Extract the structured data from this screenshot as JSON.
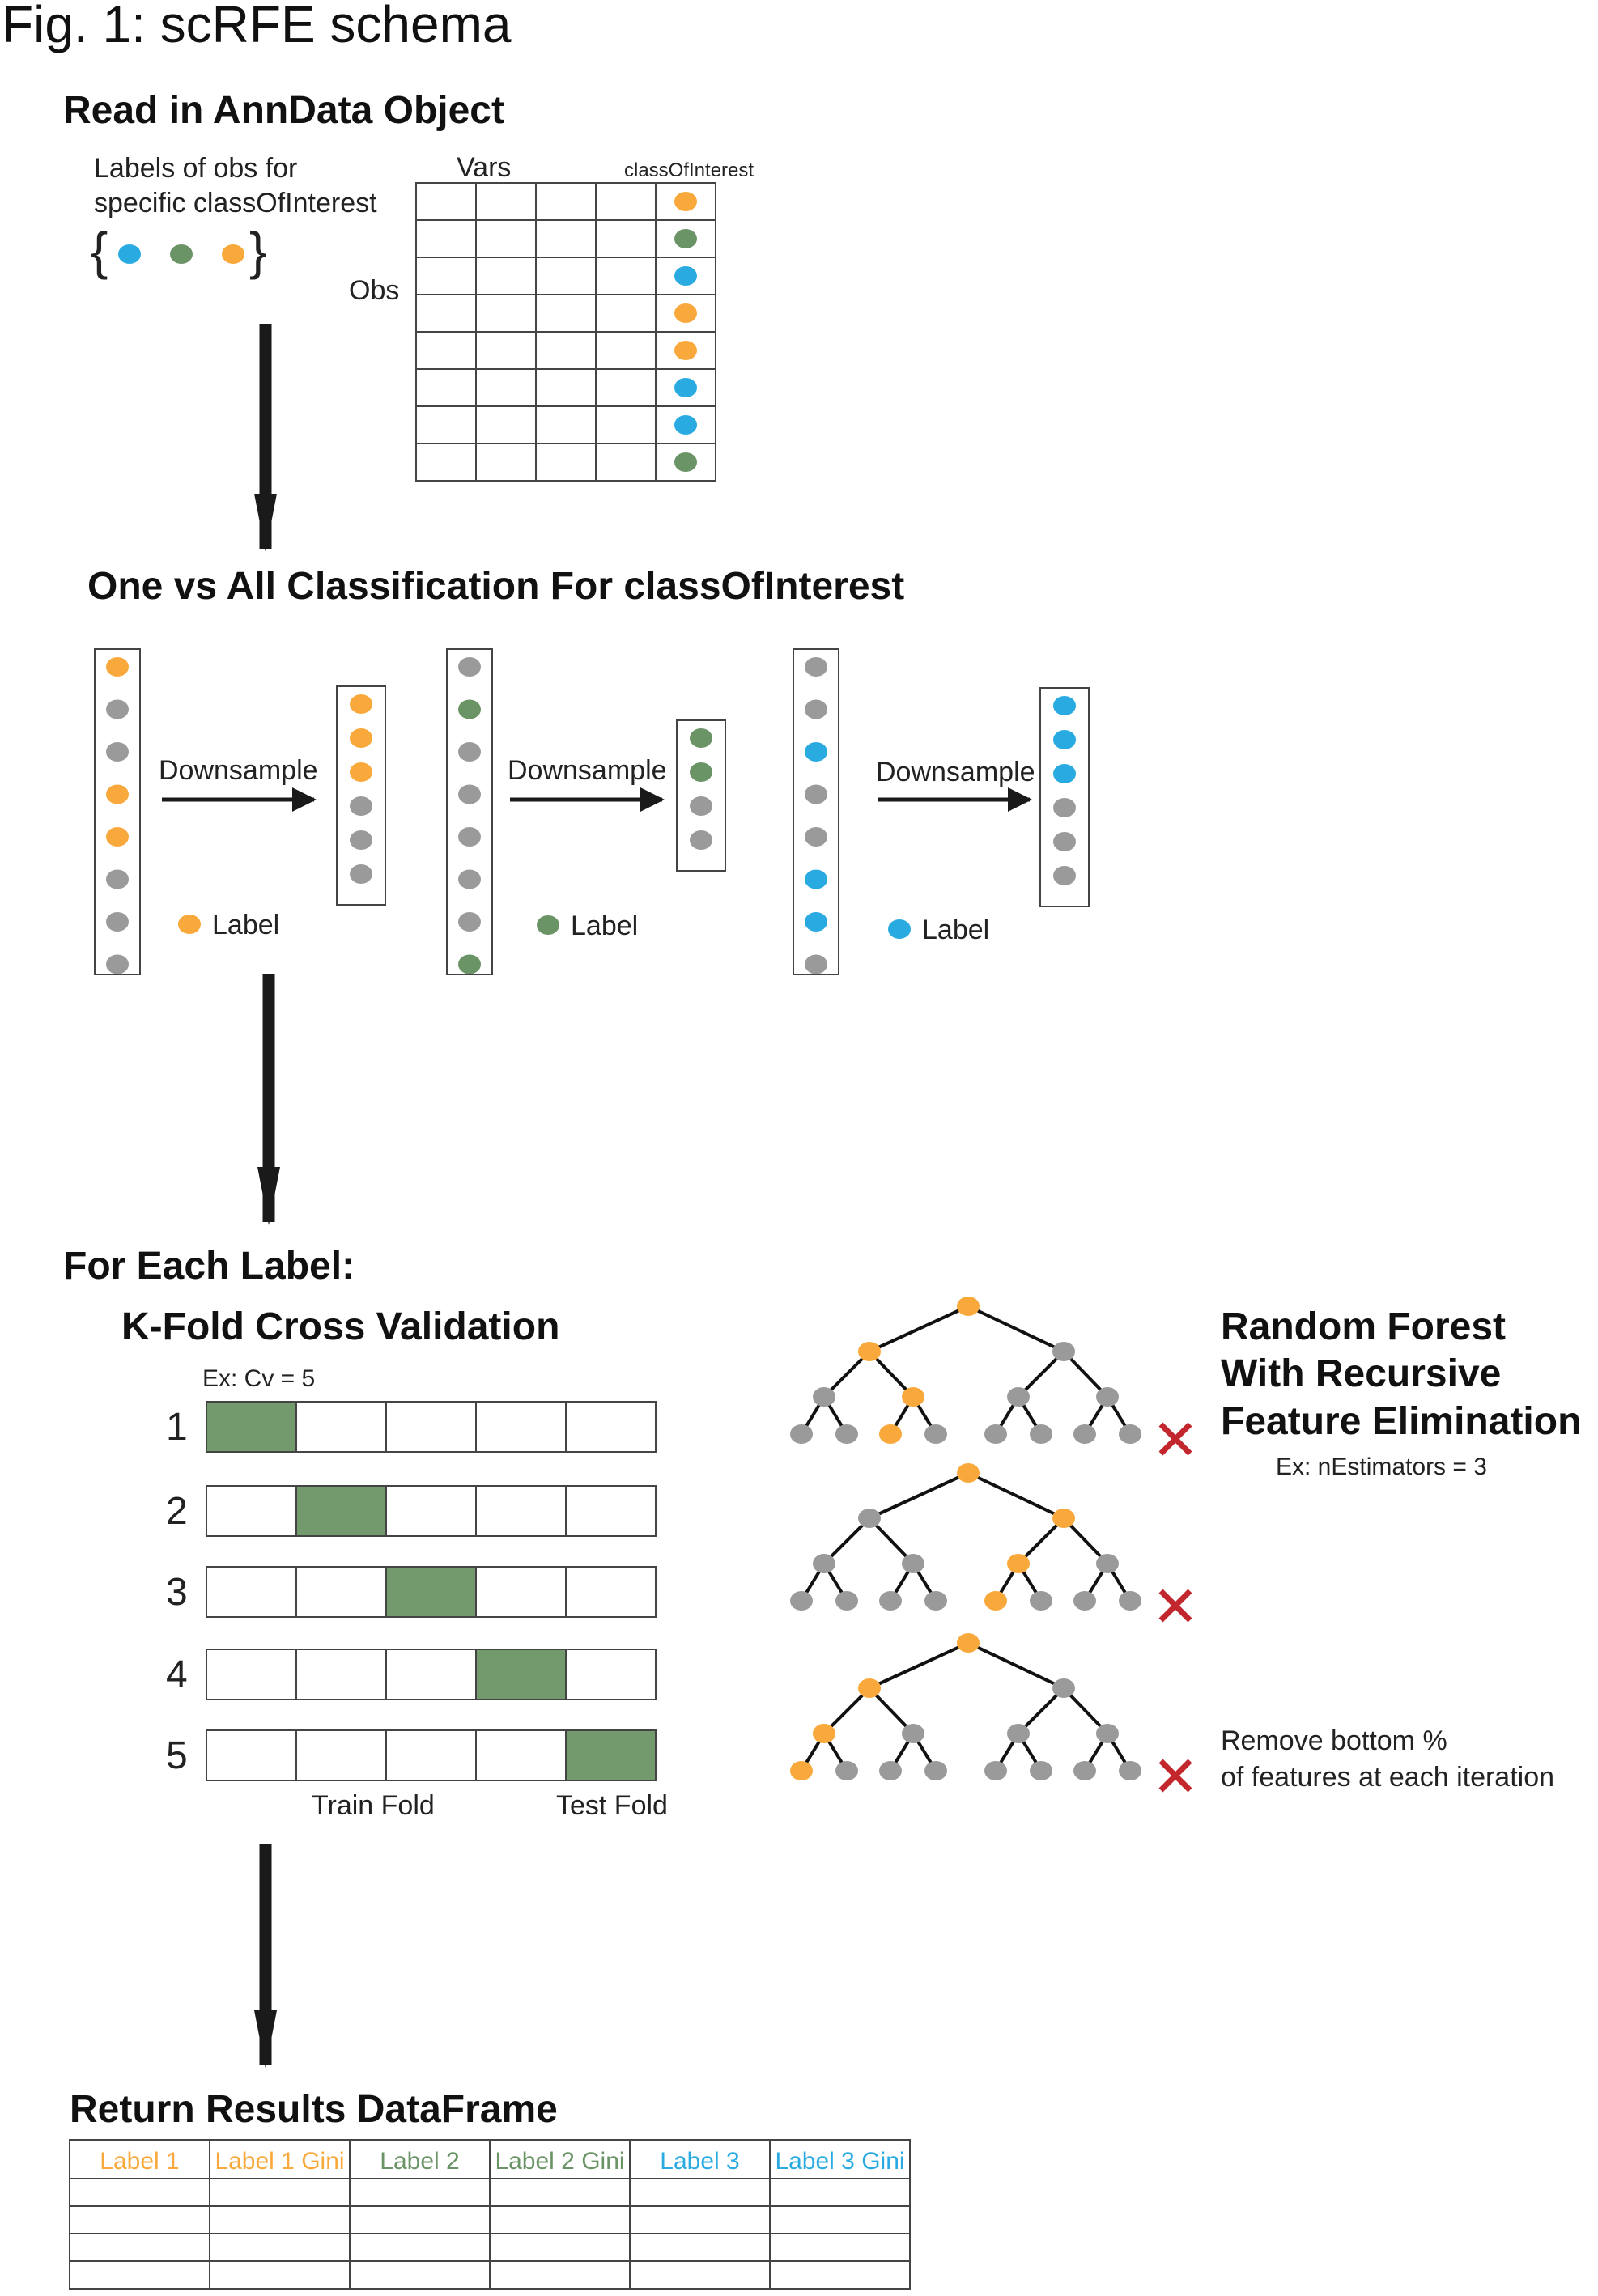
{
  "colors": {
    "orange": "#f9a93c",
    "green": "#6b9466",
    "blue": "#29abe2",
    "gray": "#9a9a9a",
    "fold_green": "#739a6c",
    "cross_red": "#c1272d",
    "arrow": "#1a1a1a"
  },
  "figure": {
    "title": "Fig. 1: scRFE schema"
  },
  "read_in": {
    "title": "Read in AnnData Object",
    "labels_text_1": "Labels of obs for",
    "labels_text_2": "specific classOfInterest",
    "brace_open": "{",
    "brace_close": "}",
    "label_set": [
      "blue",
      "green",
      "orange"
    ],
    "vars_label": "Vars",
    "class_col_label": "classOfInterest",
    "obs_label": "Obs",
    "rows": [
      "orange",
      "green",
      "blue",
      "orange",
      "orange",
      "blue",
      "blue",
      "green"
    ]
  },
  "ova": {
    "title": "One vs All Classification For classOfInterest",
    "panels": [
      {
        "color": "orange",
        "full": [
          "orange",
          "gray",
          "gray",
          "orange",
          "orange",
          "gray",
          "gray",
          "gray"
        ],
        "downsample_label": "Downsample",
        "down": [
          "orange",
          "orange",
          "orange",
          "gray",
          "gray",
          "gray"
        ],
        "legend": "Label"
      },
      {
        "color": "green",
        "full": [
          "gray",
          "green",
          "gray",
          "gray",
          "gray",
          "gray",
          "gray",
          "green"
        ],
        "downsample_label": "Downsample",
        "down": [
          "green",
          "green",
          "gray",
          "gray"
        ],
        "legend": "Label"
      },
      {
        "color": "blue",
        "full": [
          "gray",
          "gray",
          "blue",
          "gray",
          "gray",
          "blue",
          "blue",
          "gray"
        ],
        "downsample_label": "Downsample",
        "down": [
          "blue",
          "blue",
          "blue",
          "gray",
          "gray",
          "gray"
        ],
        "legend": "Label"
      }
    ]
  },
  "per_label": {
    "title": "For Each Label:",
    "kfold": {
      "title": "K-Fold Cross Validation",
      "example": "Ex: Cv = 5",
      "k": 5,
      "rows": [
        {
          "num": "1",
          "test_index": 0
        },
        {
          "num": "2",
          "test_index": 1
        },
        {
          "num": "3",
          "test_index": 2
        },
        {
          "num": "4",
          "test_index": 3
        },
        {
          "num": "5",
          "test_index": 4
        }
      ],
      "train_label": "Train Fold",
      "test_label": "Test Fold"
    },
    "forest": {
      "title_1": "Random Forest",
      "title_2": "With Recursive",
      "title_3": "Feature Elimination",
      "example": "Ex: nEstimators = 3",
      "note_1": "Remove bottom %",
      "note_2": "of features at each iteration",
      "cross_icon": "cross-icon",
      "trees": [
        {
          "path": "LRL"
        },
        {
          "path": "RLL"
        },
        {
          "path": "LLL"
        }
      ]
    }
  },
  "results": {
    "title": "Return Results DataFrame",
    "headers": [
      {
        "text": "Label 1",
        "color": "orange"
      },
      {
        "text": "Label 1 Gini",
        "color": "orange"
      },
      {
        "text": "Label 2",
        "color": "green"
      },
      {
        "text": "Label 2 Gini",
        "color": "green"
      },
      {
        "text": "Label 3",
        "color": "blue"
      },
      {
        "text": "Label 3 Gini",
        "color": "blue"
      }
    ],
    "empty_rows": 4
  }
}
